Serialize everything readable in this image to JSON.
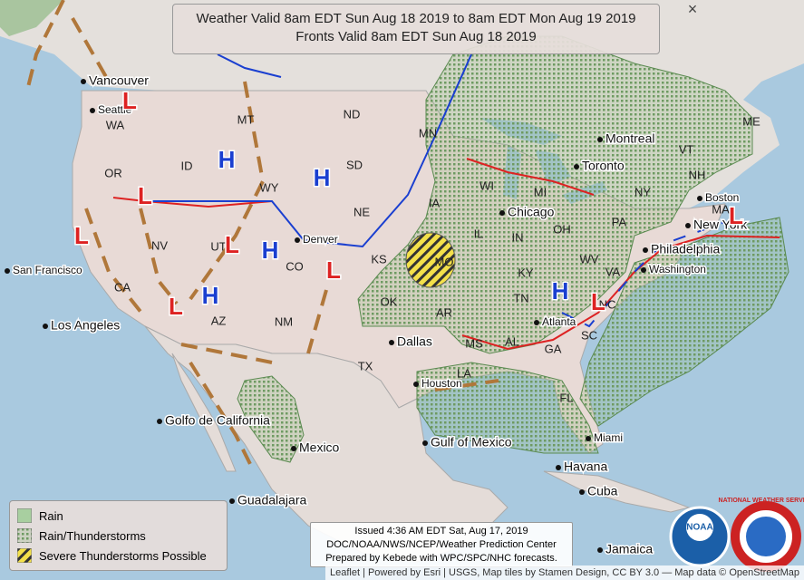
{
  "header": {
    "title_lines": [
      "Weather Valid 8am EDT Sun Aug 18 2019 to 8am EDT Mon Aug 19 2019",
      "Fronts Valid 8am EDT Sun Aug 18 2019"
    ],
    "close": "×"
  },
  "legend": {
    "items": [
      "Rain",
      "Rain/Thunderstorms",
      "Severe Thunderstorms Possible"
    ]
  },
  "issued": {
    "lines": [
      "Issued 4:36 AM EDT Sat, Aug 17, 2019",
      "DOC/NOAA/NWS/NCEP/Weather Prediction Center",
      "Prepared by Kebede with WPC/SPC/NHC forecasts."
    ]
  },
  "attribution": "Leaflet | Powered by Esri | USGS, Map tiles by Stamen Design, CC BY 3.0 — Map data © OpenStreetMap",
  "logos": [
    "NOAA",
    "NATIONAL WEATHER SERVICE"
  ],
  "places": [
    "Vancouver",
    "Seattle",
    "San Francisco",
    "Los Angeles",
    "Dallas",
    "Houston",
    "Chicago",
    "Toronto",
    "Montreal",
    "New York",
    "Philadelphia",
    "Boston",
    "Washington",
    "Atlanta",
    "Miami",
    "Havana",
    "Denver",
    "Golfo de California",
    "Gulf of Mexico",
    "Mexico",
    "Guadalajara",
    "Jamaica",
    "Cuba"
  ],
  "states": [
    "WA",
    "OR",
    "CA",
    "NV",
    "ID",
    "MT",
    "WY",
    "UT",
    "AZ",
    "CO",
    "NM",
    "ND",
    "SD",
    "NE",
    "KS",
    "OK",
    "TX",
    "MN",
    "IA",
    "MO",
    "AR",
    "LA",
    "MS",
    "AL",
    "TN",
    "KY",
    "IL",
    "IN",
    "OH",
    "MI",
    "WI",
    "GA",
    "FL",
    "SC",
    "NC",
    "VA",
    "WV",
    "PA",
    "NY",
    "VT",
    "NH",
    "ME",
    "MA"
  ],
  "pressure_centers": [
    "H",
    "H",
    "H",
    "H",
    "H",
    "L",
    "L",
    "L",
    "L",
    "L",
    "L",
    "L",
    "L"
  ]
}
